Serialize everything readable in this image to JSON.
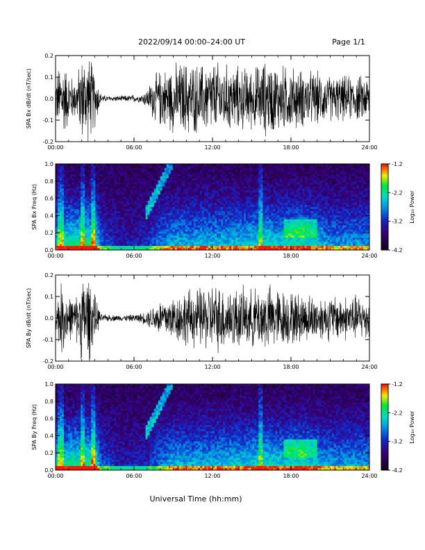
{
  "header": {
    "title": "2022/09/14  00:00–24:00 UT",
    "page": "Page 1/1"
  },
  "xlabel": "Universal Time (hh:mm)",
  "colors": {
    "trace": "#000000",
    "background": "#ffffff"
  },
  "chart_data": [
    {
      "type": "line",
      "name": "Bx waveform",
      "ylabel": "SPA Bx dB/dt (nT/sec)",
      "xlim": [
        0,
        24
      ],
      "ylim": [
        -0.2,
        0.2
      ],
      "x_ticks": [
        "00:00",
        "06:00",
        "12:00",
        "18:00",
        "24:00"
      ],
      "y_ticks": [
        "0.2",
        "0.1",
        "0.0",
        "-0.1",
        "-0.2"
      ],
      "envelope": {
        "hours": [
          0,
          0.5,
          1,
          1.5,
          2,
          2.5,
          3,
          3.5,
          4,
          5,
          6,
          6.5,
          7,
          7.5,
          8,
          9,
          10,
          11,
          12,
          13,
          14,
          15,
          16,
          17,
          18,
          19,
          20,
          21,
          22,
          23,
          24
        ],
        "amplitude": [
          0.12,
          0.22,
          0.14,
          0.1,
          0.22,
          0.24,
          0.16,
          0.02,
          0.015,
          0.015,
          0.02,
          0.02,
          0.05,
          0.12,
          0.15,
          0.18,
          0.2,
          0.18,
          0.2,
          0.18,
          0.17,
          0.16,
          0.2,
          0.18,
          0.17,
          0.15,
          0.14,
          0.12,
          0.12,
          0.12,
          0.12
        ]
      }
    },
    {
      "type": "heatmap",
      "name": "Bx spectrogram",
      "ylabel": "SPA Bx Freq (Hz)",
      "xlim": [
        0,
        24
      ],
      "ylim": [
        0,
        1.0
      ],
      "x_ticks": [
        "00:00",
        "06:00",
        "12:00",
        "18:00",
        "24:00"
      ],
      "y_ticks": [
        "1.0",
        "0.8",
        "0.6",
        "0.4",
        "0.2",
        "0.0"
      ],
      "colorbar": {
        "label": "Log₁₀ Power",
        "range": [
          -4.2,
          -1.2
        ],
        "ticks": [
          "-1.2",
          "-2.2",
          "-3.2",
          "-4.2"
        ]
      }
    },
    {
      "type": "line",
      "name": "By waveform",
      "ylabel": "SPA By dB/dt (nT/sec)",
      "xlim": [
        0,
        24
      ],
      "ylim": [
        -0.2,
        0.2
      ],
      "x_ticks": [
        "00:00",
        "06:00",
        "12:00",
        "18:00",
        "24:00"
      ],
      "y_ticks": [
        "0.2",
        "0.1",
        "0.0",
        "-0.1",
        "-0.2"
      ],
      "envelope": {
        "hours": [
          0,
          0.5,
          1,
          1.5,
          2,
          2.5,
          3,
          3.5,
          4,
          5,
          6,
          6.5,
          7,
          7.5,
          8,
          9,
          10,
          11,
          12,
          13,
          14,
          15,
          16,
          17,
          18,
          19,
          20,
          21,
          22,
          23,
          24
        ],
        "amplitude": [
          0.08,
          0.2,
          0.12,
          0.1,
          0.22,
          0.24,
          0.12,
          0.02,
          0.018,
          0.015,
          0.02,
          0.025,
          0.04,
          0.07,
          0.1,
          0.12,
          0.15,
          0.16,
          0.18,
          0.17,
          0.16,
          0.15,
          0.18,
          0.16,
          0.14,
          0.13,
          0.12,
          0.12,
          0.12,
          0.12,
          0.11
        ]
      }
    },
    {
      "type": "heatmap",
      "name": "By spectrogram",
      "ylabel": "SPA By Freq (Hz)",
      "xlim": [
        0,
        24
      ],
      "ylim": [
        0,
        1.0
      ],
      "x_ticks": [
        "00:00",
        "06:00",
        "12:00",
        "18:00",
        "24:00"
      ],
      "y_ticks": [
        "1.0",
        "0.8",
        "0.6",
        "0.4",
        "0.2",
        "0.0"
      ],
      "colorbar": {
        "label": "Log₁₀ Power",
        "range": [
          -4.2,
          -1.2
        ],
        "ticks": [
          "-1.2",
          "-2.2",
          "-3.2",
          "-4.2"
        ]
      }
    }
  ]
}
